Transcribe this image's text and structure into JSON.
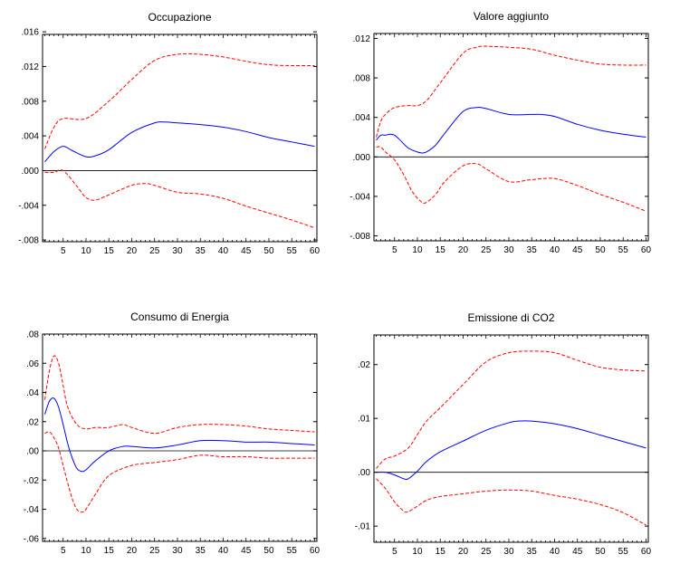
{
  "chart_data": [
    {
      "type": "line",
      "title": "Occupazione",
      "x_ticks": [
        5,
        10,
        15,
        20,
        25,
        30,
        35,
        40,
        45,
        50,
        55,
        60
      ],
      "y_tick_labels": [
        ".016",
        ".012",
        ".008",
        ".004",
        ".000",
        "-.004",
        "-.008"
      ],
      "y_tick_values": [
        0.016,
        0.012,
        0.008,
        0.004,
        0.0,
        -0.004,
        -0.008
      ],
      "xlim": [
        0.5,
        60.5
      ],
      "ylim": [
        -0.0082,
        0.0157
      ],
      "zero_line": true,
      "series": [
        {
          "role": "upper",
          "color": "#ff0000",
          "dash": "dashed",
          "x": [
            1,
            3,
            5,
            10,
            15,
            20,
            25,
            30,
            35,
            40,
            45,
            50,
            55,
            60
          ],
          "y": [
            0.0025,
            0.005,
            0.006,
            0.006,
            0.008,
            0.0105,
            0.0127,
            0.0134,
            0.0134,
            0.0131,
            0.0126,
            0.0122,
            0.0121,
            0.0121
          ]
        },
        {
          "role": "irf",
          "color": "#0000ff",
          "dash": "solid",
          "x": [
            1,
            3,
            5,
            7,
            10,
            12,
            15,
            20,
            25,
            27,
            30,
            35,
            40,
            45,
            50,
            55,
            60
          ],
          "y": [
            0.001,
            0.0022,
            0.0028,
            0.0023,
            0.0016,
            0.0017,
            0.0024,
            0.0044,
            0.0055,
            0.0056,
            0.0055,
            0.0053,
            0.005,
            0.0045,
            0.0038,
            0.0033,
            0.0028
          ]
        },
        {
          "role": "lower",
          "color": "#ff0000",
          "dash": "dashed",
          "x": [
            1,
            3,
            5,
            8,
            10,
            12,
            15,
            20,
            23,
            25,
            30,
            35,
            40,
            45,
            50,
            55,
            60
          ],
          "y": [
            -0.0002,
            -0.0002,
            0.0,
            -0.0018,
            -0.0031,
            -0.0034,
            -0.0028,
            -0.0017,
            -0.0015,
            -0.0017,
            -0.0025,
            -0.0027,
            -0.0032,
            -0.0041,
            -0.0049,
            -0.0057,
            -0.0066
          ]
        }
      ]
    },
    {
      "type": "line",
      "title": "Valore aggiunto",
      "x_ticks": [
        5,
        10,
        15,
        20,
        25,
        30,
        35,
        40,
        45,
        50,
        55,
        60
      ],
      "y_tick_labels": [
        ".012",
        ".008",
        ".004",
        ".000",
        "-.004",
        "-.008"
      ],
      "y_tick_values": [
        0.012,
        0.008,
        0.004,
        0.0,
        -0.004,
        -0.008
      ],
      "xlim": [
        0.5,
        60.5
      ],
      "ylim": [
        -0.0085,
        0.0125
      ],
      "zero_line": true,
      "series": [
        {
          "role": "upper",
          "color": "#ff0000",
          "dash": "dashed",
          "x": [
            1,
            2,
            3,
            5,
            8,
            10,
            12,
            15,
            20,
            23,
            25,
            30,
            35,
            40,
            45,
            50,
            55,
            60
          ],
          "y": [
            0.002,
            0.0036,
            0.0043,
            0.005,
            0.0052,
            0.0052,
            0.0057,
            0.0075,
            0.0105,
            0.0111,
            0.0112,
            0.0111,
            0.0109,
            0.0103,
            0.0098,
            0.0094,
            0.0093,
            0.0093
          ]
        },
        {
          "role": "irf",
          "color": "#0000ff",
          "dash": "solid",
          "x": [
            1,
            2,
            3,
            4,
            5,
            6,
            8,
            10,
            11,
            12,
            14,
            16,
            20,
            23,
            25,
            30,
            35,
            37,
            40,
            45,
            50,
            55,
            60
          ],
          "y": [
            0.0017,
            0.0022,
            0.0022,
            0.0023,
            0.0022,
            0.0018,
            0.0009,
            0.0005,
            0.0004,
            0.0005,
            0.0012,
            0.0024,
            0.0046,
            0.005,
            0.0049,
            0.0043,
            0.0043,
            0.0043,
            0.0041,
            0.0033,
            0.0027,
            0.0023,
            0.002
          ]
        },
        {
          "role": "lower",
          "color": "#ff0000",
          "dash": "dashed",
          "x": [
            1,
            2,
            3,
            5,
            7,
            9,
            11,
            12,
            14,
            16,
            20,
            23,
            25,
            30,
            35,
            40,
            45,
            50,
            55,
            60
          ],
          "y": [
            0.001,
            0.001,
            0.0005,
            -0.0003,
            -0.0018,
            -0.0036,
            -0.0046,
            -0.0046,
            -0.0038,
            -0.0025,
            -0.0009,
            -0.0007,
            -0.0012,
            -0.0025,
            -0.0023,
            -0.0022,
            -0.0029,
            -0.0038,
            -0.0046,
            -0.0055
          ]
        }
      ]
    },
    {
      "type": "line",
      "title": "Consumo di Energia",
      "x_ticks": [
        5,
        10,
        15,
        20,
        25,
        30,
        35,
        40,
        45,
        50,
        55,
        60
      ],
      "y_tick_labels": [
        ".08",
        ".06",
        ".04",
        ".02",
        ".00",
        "-.02",
        "-.04",
        "-.06"
      ],
      "y_tick_values": [
        0.08,
        0.06,
        0.04,
        0.02,
        0.0,
        -0.02,
        -0.04,
        -0.06
      ],
      "xlim": [
        0.5,
        60.5
      ],
      "ylim": [
        -0.062,
        0.08
      ],
      "zero_line": true,
      "series": [
        {
          "role": "upper",
          "color": "#ff0000",
          "dash": "dashed",
          "x": [
            1,
            2,
            3,
            4,
            5,
            6,
            8,
            10,
            12,
            15,
            18,
            20,
            25,
            30,
            35,
            40,
            45,
            50,
            55,
            60
          ],
          "y": [
            0.035,
            0.055,
            0.065,
            0.06,
            0.045,
            0.03,
            0.018,
            0.015,
            0.016,
            0.016,
            0.018,
            0.016,
            0.012,
            0.016,
            0.018,
            0.018,
            0.017,
            0.015,
            0.014,
            0.013
          ]
        },
        {
          "role": "irf",
          "color": "#0000ff",
          "dash": "solid",
          "x": [
            1,
            2,
            3,
            4,
            5,
            6,
            7,
            8,
            9,
            10,
            12,
            15,
            18,
            20,
            25,
            30,
            35,
            40,
            45,
            50,
            55,
            60
          ],
          "y": [
            0.025,
            0.034,
            0.036,
            0.03,
            0.018,
            0.005,
            -0.005,
            -0.012,
            -0.014,
            -0.013,
            -0.007,
            0.0,
            0.003,
            0.003,
            0.002,
            0.004,
            0.007,
            0.007,
            0.006,
            0.006,
            0.005,
            0.004
          ]
        },
        {
          "role": "lower",
          "color": "#ff0000",
          "dash": "dashed",
          "x": [
            1,
            2,
            3,
            4,
            5,
            6,
            7,
            8,
            9,
            10,
            12,
            15,
            20,
            25,
            30,
            35,
            40,
            45,
            50,
            55,
            60
          ],
          "y": [
            0.012,
            0.013,
            0.009,
            0.002,
            -0.01,
            -0.022,
            -0.033,
            -0.04,
            -0.042,
            -0.04,
            -0.03,
            -0.017,
            -0.01,
            -0.008,
            -0.006,
            -0.003,
            -0.004,
            -0.004,
            -0.005,
            -0.005,
            -0.005
          ]
        }
      ]
    },
    {
      "type": "line",
      "title": "Emissione di CO2",
      "x_ticks": [
        5,
        10,
        15,
        20,
        25,
        30,
        35,
        40,
        45,
        50,
        55,
        60
      ],
      "y_tick_labels": [
        ".02",
        ".01",
        ".00",
        "-.01"
      ],
      "y_tick_values": [
        0.02,
        0.01,
        0.0,
        -0.01
      ],
      "xlim": [
        0.5,
        60.5
      ],
      "ylim": [
        -0.013,
        0.0255
      ],
      "zero_line": true,
      "series": [
        {
          "role": "upper",
          "color": "#ff0000",
          "dash": "dashed",
          "x": [
            1,
            3,
            5,
            8,
            10,
            12,
            15,
            20,
            25,
            30,
            35,
            40,
            45,
            50,
            55,
            60
          ],
          "y": [
            0.0007,
            0.0025,
            0.003,
            0.0045,
            0.007,
            0.0095,
            0.012,
            0.0163,
            0.0205,
            0.0222,
            0.0225,
            0.0222,
            0.0208,
            0.0195,
            0.019,
            0.0188
          ]
        },
        {
          "role": "irf",
          "color": "#0000ff",
          "dash": "solid",
          "x": [
            1,
            3,
            5,
            7,
            8,
            10,
            12,
            15,
            20,
            25,
            30,
            32,
            35,
            40,
            45,
            50,
            55,
            60
          ],
          "y": [
            0.0,
            0.0,
            -0.0005,
            -0.0012,
            -0.0012,
            0.0002,
            0.002,
            0.0038,
            0.0058,
            0.0078,
            0.0092,
            0.0095,
            0.0095,
            0.009,
            0.0081,
            0.0069,
            0.0057,
            0.0045
          ]
        },
        {
          "role": "lower",
          "color": "#ff0000",
          "dash": "dashed",
          "x": [
            1,
            3,
            5,
            7,
            8,
            10,
            12,
            15,
            20,
            25,
            30,
            35,
            40,
            45,
            50,
            55,
            60
          ],
          "y": [
            -0.0012,
            -0.003,
            -0.0055,
            -0.0072,
            -0.0073,
            -0.0063,
            -0.0052,
            -0.0045,
            -0.004,
            -0.0035,
            -0.0033,
            -0.0035,
            -0.0043,
            -0.005,
            -0.006,
            -0.0075,
            -0.0098
          ]
        }
      ]
    }
  ]
}
